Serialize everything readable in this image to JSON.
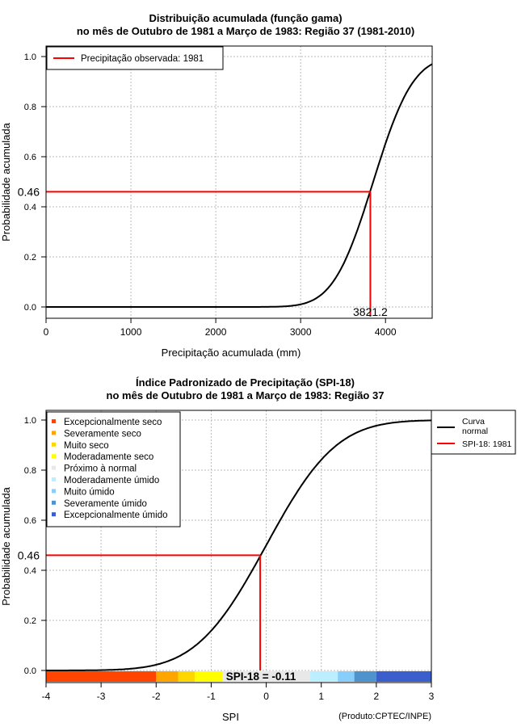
{
  "chart_data": [
    {
      "type": "line",
      "title": "Distribuição acumulada (função gama)",
      "subtitle": "no mês de Outubro de 1981 a Março de 1983: Região 37 (1981-2010)",
      "xlabel": "Precipitação acumulada (mm)",
      "ylabel": "Probabilidade acumulada",
      "xlim": [
        0,
        4550
      ],
      "ylim": [
        0,
        1
      ],
      "xticks": [
        "0",
        "1000",
        "2000",
        "3000",
        "4000"
      ],
      "xtick_values": [
        0,
        1000,
        2000,
        3000,
        4000
      ],
      "yticks": [
        "0.0",
        "0.2",
        "0.4",
        "0.6",
        "0.8",
        "1.0"
      ],
      "ytick_values": [
        0,
        0.2,
        0.4,
        0.6,
        0.8,
        1.0
      ],
      "grid": true,
      "legend": {
        "placement": "top-left",
        "entries": [
          "Precipitação observada: 1981"
        ]
      },
      "curve": {
        "distribution": "gamma-cdf",
        "approx_mean": 3855,
        "approx_sd": 370
      },
      "observed": {
        "x": 3821.2,
        "y": 0.46,
        "x_label": "3821.2",
        "y_label": "0.46"
      }
    },
    {
      "type": "line",
      "title": "Índice Padronizado de Precipitação (SPI-18)",
      "subtitle": "no mês de Outubro de 1981 a Março de 1983: Região 37",
      "xlabel": "SPI",
      "ylabel": "Probabilidade acumulada",
      "xlim": [
        -4,
        3
      ],
      "ylim": [
        0,
        1
      ],
      "xticks": [
        "-4",
        "-3",
        "-2",
        "-1",
        "0",
        "1",
        "2",
        "3"
      ],
      "xtick_values": [
        -4,
        -3,
        -2,
        -1,
        0,
        1,
        2,
        3
      ],
      "yticks": [
        "0.0",
        "0.2",
        "0.4",
        "0.6",
        "0.8",
        "1.0"
      ],
      "ytick_values": [
        0,
        0.2,
        0.4,
        0.6,
        0.8,
        1.0
      ],
      "grid": true,
      "legend_categories": [
        {
          "label": "Excepcionalmente seco",
          "color": "#ff4500",
          "range": [
            -4,
            -2
          ]
        },
        {
          "label": "Severamente seco",
          "color": "#ffa500",
          "range": [
            -2,
            -1.6
          ]
        },
        {
          "label": "Muito seco",
          "color": "#ffd700",
          "range": [
            -1.6,
            -1.3
          ]
        },
        {
          "label": "Moderadamente seco",
          "color": "#ffff00",
          "range": [
            -1.3,
            -0.8
          ]
        },
        {
          "label": "Próximo à normal",
          "color": "#e8e8e8",
          "range": [
            -0.8,
            0.8
          ]
        },
        {
          "label": "Moderadamente úmido",
          "color": "#bbeeff",
          "range": [
            0.8,
            1.3
          ]
        },
        {
          "label": "Muito úmido",
          "color": "#87cefa",
          "range": [
            1.3,
            1.6
          ]
        },
        {
          "label": "Severamente úmido",
          "color": "#4f93cc",
          "range": [
            1.6,
            2
          ]
        },
        {
          "label": "Excepcionalmente úmido",
          "color": "#3a5fcd",
          "range": [
            2,
            3
          ]
        }
      ],
      "legend": {
        "placement": "right",
        "entries": [
          "Curva normal",
          "SPI-18: 1981"
        ]
      },
      "curve": {
        "distribution": "normal-cdf"
      },
      "observed": {
        "x": -0.11,
        "y": 0.46,
        "y_label": "0.46",
        "annotation": "SPI-18 = -0.11"
      },
      "credit": "(Produto:CPTEC/INPE)"
    }
  ]
}
